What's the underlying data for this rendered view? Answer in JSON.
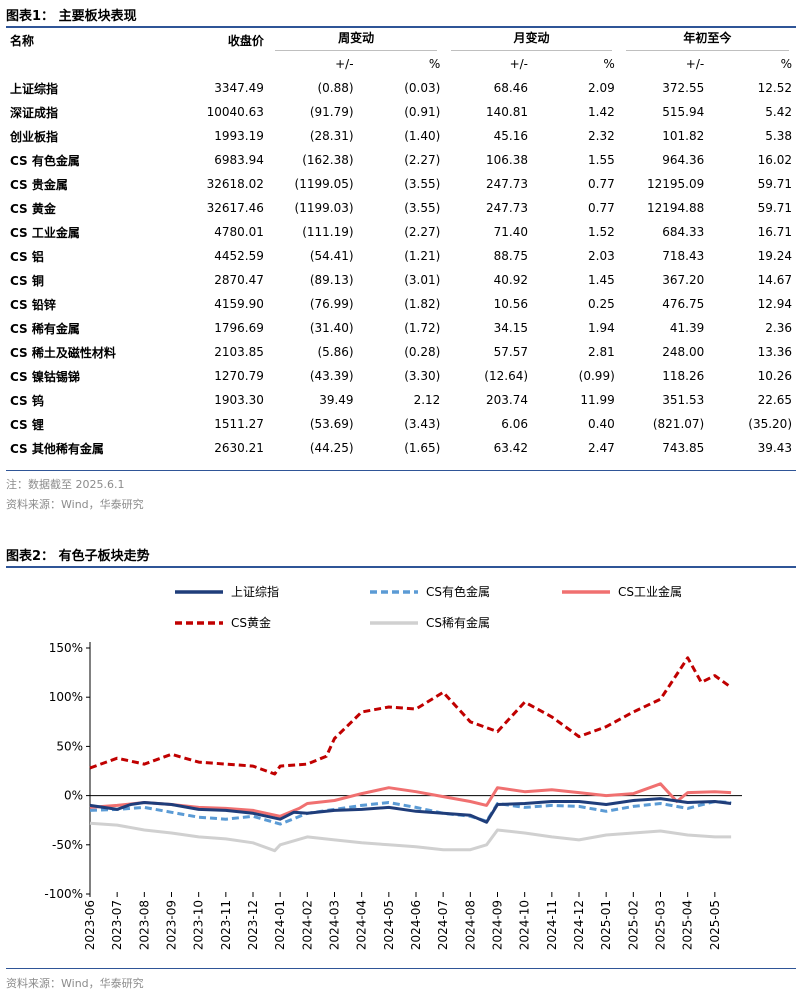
{
  "figure1": {
    "title": "图表1：  主要板块表现",
    "headers": {
      "name": "名称",
      "close": "收盘价",
      "week": "周变动",
      "month": "月变动",
      "ytd": "年初至今",
      "abs": "+/-",
      "pct": "%"
    },
    "rows": [
      {
        "name": "上证综指",
        "close": "3347.49",
        "w_abs": "(0.88)",
        "w_pct": "(0.03)",
        "m_abs": "68.46",
        "m_pct": "2.09",
        "y_abs": "372.55",
        "y_pct": "12.52"
      },
      {
        "name": "深证成指",
        "close": "10040.63",
        "w_abs": "(91.79)",
        "w_pct": "(0.91)",
        "m_abs": "140.81",
        "m_pct": "1.42",
        "y_abs": "515.94",
        "y_pct": "5.42"
      },
      {
        "name": "创业板指",
        "close": "1993.19",
        "w_abs": "(28.31)",
        "w_pct": "(1.40)",
        "m_abs": "45.16",
        "m_pct": "2.32",
        "y_abs": "101.82",
        "y_pct": "5.38"
      },
      {
        "name": "CS 有色金属",
        "close": "6983.94",
        "w_abs": "(162.38)",
        "w_pct": "(2.27)",
        "m_abs": "106.38",
        "m_pct": "1.55",
        "y_abs": "964.36",
        "y_pct": "16.02"
      },
      {
        "name": "CS 贵金属",
        "close": "32618.02",
        "w_abs": "(1199.05)",
        "w_pct": "(3.55)",
        "m_abs": "247.73",
        "m_pct": "0.77",
        "y_abs": "12195.09",
        "y_pct": "59.71"
      },
      {
        "name": "CS 黄金",
        "close": "32617.46",
        "w_abs": "(1199.03)",
        "w_pct": "(3.55)",
        "m_abs": "247.73",
        "m_pct": "0.77",
        "y_abs": "12194.88",
        "y_pct": "59.71"
      },
      {
        "name": "CS 工业金属",
        "close": "4780.01",
        "w_abs": "(111.19)",
        "w_pct": "(2.27)",
        "m_abs": "71.40",
        "m_pct": "1.52",
        "y_abs": "684.33",
        "y_pct": "16.71"
      },
      {
        "name": "CS 铝",
        "close": "4452.59",
        "w_abs": "(54.41)",
        "w_pct": "(1.21)",
        "m_abs": "88.75",
        "m_pct": "2.03",
        "y_abs": "718.43",
        "y_pct": "19.24"
      },
      {
        "name": "CS 铜",
        "close": "2870.47",
        "w_abs": "(89.13)",
        "w_pct": "(3.01)",
        "m_abs": "40.92",
        "m_pct": "1.45",
        "y_abs": "367.20",
        "y_pct": "14.67"
      },
      {
        "name": "CS 铅锌",
        "close": "4159.90",
        "w_abs": "(76.99)",
        "w_pct": "(1.82)",
        "m_abs": "10.56",
        "m_pct": "0.25",
        "y_abs": "476.75",
        "y_pct": "12.94"
      },
      {
        "name": "CS 稀有金属",
        "close": "1796.69",
        "w_abs": "(31.40)",
        "w_pct": "(1.72)",
        "m_abs": "34.15",
        "m_pct": "1.94",
        "y_abs": "41.39",
        "y_pct": "2.36"
      },
      {
        "name": "CS 稀土及磁性材料",
        "close": "2103.85",
        "w_abs": "(5.86)",
        "w_pct": "(0.28)",
        "m_abs": "57.57",
        "m_pct": "2.81",
        "y_abs": "248.00",
        "y_pct": "13.36"
      },
      {
        "name": "CS 镍钴锡锑",
        "close": "1270.79",
        "w_abs": "(43.39)",
        "w_pct": "(3.30)",
        "m_abs": "(12.64)",
        "m_pct": "(0.99)",
        "y_abs": "118.26",
        "y_pct": "10.26"
      },
      {
        "name": "CS 钨",
        "close": "1903.30",
        "w_abs": "39.49",
        "w_pct": "2.12",
        "m_abs": "203.74",
        "m_pct": "11.99",
        "y_abs": "351.53",
        "y_pct": "22.65"
      },
      {
        "name": "CS 锂",
        "close": "1511.27",
        "w_abs": "(53.69)",
        "w_pct": "(3.43)",
        "m_abs": "6.06",
        "m_pct": "0.40",
        "y_abs": "(821.07)",
        "y_pct": "(35.20)"
      },
      {
        "name": "CS 其他稀有金属",
        "close": "2630.21",
        "w_abs": "(44.25)",
        "w_pct": "(1.65)",
        "m_abs": "63.42",
        "m_pct": "2.47",
        "y_abs": "743.85",
        "y_pct": "39.43"
      }
    ],
    "note": "注：数据截至 2025.6.1",
    "source": "资料来源：Wind，华泰研究"
  },
  "figure2": {
    "title": "图表2：  有色子板块走势",
    "source": "资料来源：Wind，华泰研究"
  },
  "chart_data": {
    "type": "line",
    "y_ticks": [
      "150%",
      "100%",
      "50%",
      "0%",
      "-50%",
      "-100%"
    ],
    "ylim": [
      -100,
      150
    ],
    "x_ticks": [
      "2023-06",
      "2023-07",
      "2023-08",
      "2023-09",
      "2023-10",
      "2023-11",
      "2023-12",
      "2024-01",
      "2024-02",
      "2024-03",
      "2024-04",
      "2024-05",
      "2024-06",
      "2024-07",
      "2024-08",
      "2024-09",
      "2024-10",
      "2024-11",
      "2024-12",
      "2025-01",
      "2025-02",
      "2025-03",
      "2025-04",
      "2025-05"
    ],
    "x_index_range": [
      0,
      24
    ],
    "series": [
      {
        "name": "上证综指",
        "color": "#1f3d7a",
        "dash": "solid",
        "points": [
          [
            0,
            -10
          ],
          [
            1,
            -14
          ],
          [
            1.5,
            -9
          ],
          [
            2,
            -7
          ],
          [
            3,
            -9
          ],
          [
            4,
            -14
          ],
          [
            5,
            -15
          ],
          [
            6,
            -18
          ],
          [
            7,
            -24
          ],
          [
            7.5,
            -17
          ],
          [
            8,
            -18
          ],
          [
            9,
            -15
          ],
          [
            10,
            -14
          ],
          [
            11,
            -12
          ],
          [
            12,
            -16
          ],
          [
            13,
            -18
          ],
          [
            14,
            -20
          ],
          [
            14.6,
            -27
          ],
          [
            15,
            -9
          ],
          [
            16,
            -8
          ],
          [
            17,
            -6
          ],
          [
            18,
            -6
          ],
          [
            19,
            -9
          ],
          [
            20,
            -5
          ],
          [
            21,
            -3
          ],
          [
            22,
            -7
          ],
          [
            23,
            -6
          ],
          [
            23.6,
            -8
          ]
        ]
      },
      {
        "name": "CS有色金属",
        "color": "#5b9bd5",
        "dash": "dashed",
        "points": [
          [
            0,
            -15
          ],
          [
            1,
            -14
          ],
          [
            2,
            -12
          ],
          [
            3,
            -17
          ],
          [
            4,
            -22
          ],
          [
            5,
            -24
          ],
          [
            6,
            -21
          ],
          [
            7,
            -29
          ],
          [
            8,
            -18
          ],
          [
            9,
            -14
          ],
          [
            10,
            -10
          ],
          [
            11,
            -7
          ],
          [
            12,
            -12
          ],
          [
            13,
            -18
          ],
          [
            14,
            -21
          ],
          [
            14.6,
            -26
          ],
          [
            15,
            -8
          ],
          [
            16,
            -12
          ],
          [
            17,
            -10
          ],
          [
            18,
            -11
          ],
          [
            19,
            -16
          ],
          [
            20,
            -11
          ],
          [
            21,
            -8
          ],
          [
            22,
            -13
          ],
          [
            23,
            -6
          ],
          [
            23.6,
            -7
          ]
        ]
      },
      {
        "name": "CS工业金属",
        "color": "#f07070",
        "dash": "solid",
        "points": [
          [
            0,
            -12
          ],
          [
            1,
            -10
          ],
          [
            2,
            -7
          ],
          [
            3,
            -9
          ],
          [
            4,
            -12
          ],
          [
            5,
            -13
          ],
          [
            6,
            -15
          ],
          [
            7,
            -21
          ],
          [
            7.7,
            -13
          ],
          [
            8,
            -8
          ],
          [
            9,
            -5
          ],
          [
            10,
            2
          ],
          [
            11,
            8
          ],
          [
            12,
            4
          ],
          [
            13,
            -1
          ],
          [
            14,
            -6
          ],
          [
            14.6,
            -10
          ],
          [
            15,
            8
          ],
          [
            16,
            4
          ],
          [
            17,
            6
          ],
          [
            18,
            3
          ],
          [
            19,
            0
          ],
          [
            20,
            2
          ],
          [
            21,
            12
          ],
          [
            21.6,
            -6
          ],
          [
            22,
            3
          ],
          [
            23,
            4
          ],
          [
            23.6,
            3
          ]
        ]
      },
      {
        "name": "CS黄金",
        "color": "#c00000",
        "dash": "dashed",
        "points": [
          [
            0,
            28
          ],
          [
            1,
            38
          ],
          [
            2,
            32
          ],
          [
            3,
            42
          ],
          [
            4,
            34
          ],
          [
            5,
            32
          ],
          [
            6,
            30
          ],
          [
            6.8,
            22
          ],
          [
            7,
            30
          ],
          [
            8,
            32
          ],
          [
            8.7,
            40
          ],
          [
            9,
            58
          ],
          [
            10,
            85
          ],
          [
            11,
            90
          ],
          [
            12,
            88
          ],
          [
            13,
            105
          ],
          [
            14,
            75
          ],
          [
            15,
            65
          ],
          [
            16,
            95
          ],
          [
            17,
            80
          ],
          [
            18,
            60
          ],
          [
            19,
            70
          ],
          [
            20,
            85
          ],
          [
            21,
            98
          ],
          [
            22,
            140
          ],
          [
            22.5,
            115
          ],
          [
            23,
            122
          ],
          [
            23.6,
            110
          ]
        ]
      },
      {
        "name": "CS稀有金属",
        "color": "#d0d0d0",
        "dash": "solid",
        "points": [
          [
            0,
            -28
          ],
          [
            1,
            -30
          ],
          [
            2,
            -35
          ],
          [
            3,
            -38
          ],
          [
            4,
            -42
          ],
          [
            5,
            -44
          ],
          [
            6,
            -48
          ],
          [
            6.8,
            -56
          ],
          [
            7,
            -50
          ],
          [
            8,
            -42
          ],
          [
            9,
            -45
          ],
          [
            10,
            -48
          ],
          [
            11,
            -50
          ],
          [
            12,
            -52
          ],
          [
            13,
            -55
          ],
          [
            14,
            -55
          ],
          [
            14.6,
            -50
          ],
          [
            15,
            -35
          ],
          [
            16,
            -38
          ],
          [
            17,
            -42
          ],
          [
            18,
            -45
          ],
          [
            19,
            -40
          ],
          [
            20,
            -38
          ],
          [
            21,
            -36
          ],
          [
            22,
            -40
          ],
          [
            23,
            -42
          ],
          [
            23.6,
            -42
          ]
        ]
      }
    ]
  }
}
